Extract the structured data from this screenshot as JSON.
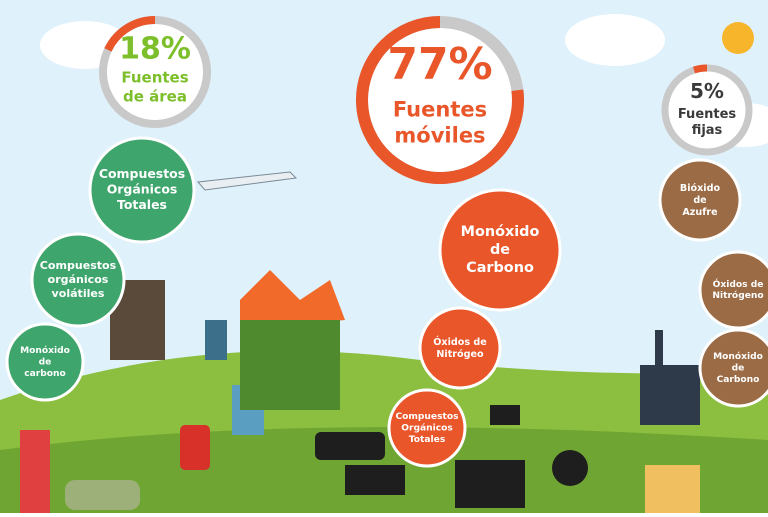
{
  "groups": [
    {
      "value": 18,
      "value_label": "18%",
      "title": [
        "Fuentes",
        "de área"
      ],
      "color": "#e8562a",
      "text_color": "#7cbf2a",
      "bubble_color": "#3ea56c",
      "bubbles": [
        [
          "Compuestos",
          "Orgánicos",
          "Totales"
        ],
        [
          "Compuestos",
          "orgánicos",
          "volátiles"
        ],
        [
          "Monóxido",
          "de",
          "carbono"
        ]
      ]
    },
    {
      "value": 77,
      "value_label": "77%",
      "title": [
        "Fuentes",
        "móviles"
      ],
      "color": "#e8562a",
      "text_color": "#e8562a",
      "bubble_color": "#e8562a",
      "bubbles": [
        [
          "Monóxido",
          "de",
          "Carbono"
        ],
        [
          "Óxidos de",
          "Nitrógeo"
        ],
        [
          "Compuestos",
          "Orgánicos",
          "Totales"
        ]
      ]
    },
    {
      "value": 5,
      "value_label": "5%",
      "title": [
        "Fuentes",
        "fijas"
      ],
      "color": "#e8562a",
      "text_color": "#3a3a3a",
      "bubble_color": "#9b6b45",
      "bubbles": [
        [
          "Bióxido",
          "de",
          "Azufre"
        ],
        [
          "Óxidos de",
          "Nitrógeno"
        ],
        [
          "Monóxido",
          "de",
          "Carbono"
        ]
      ]
    }
  ]
}
